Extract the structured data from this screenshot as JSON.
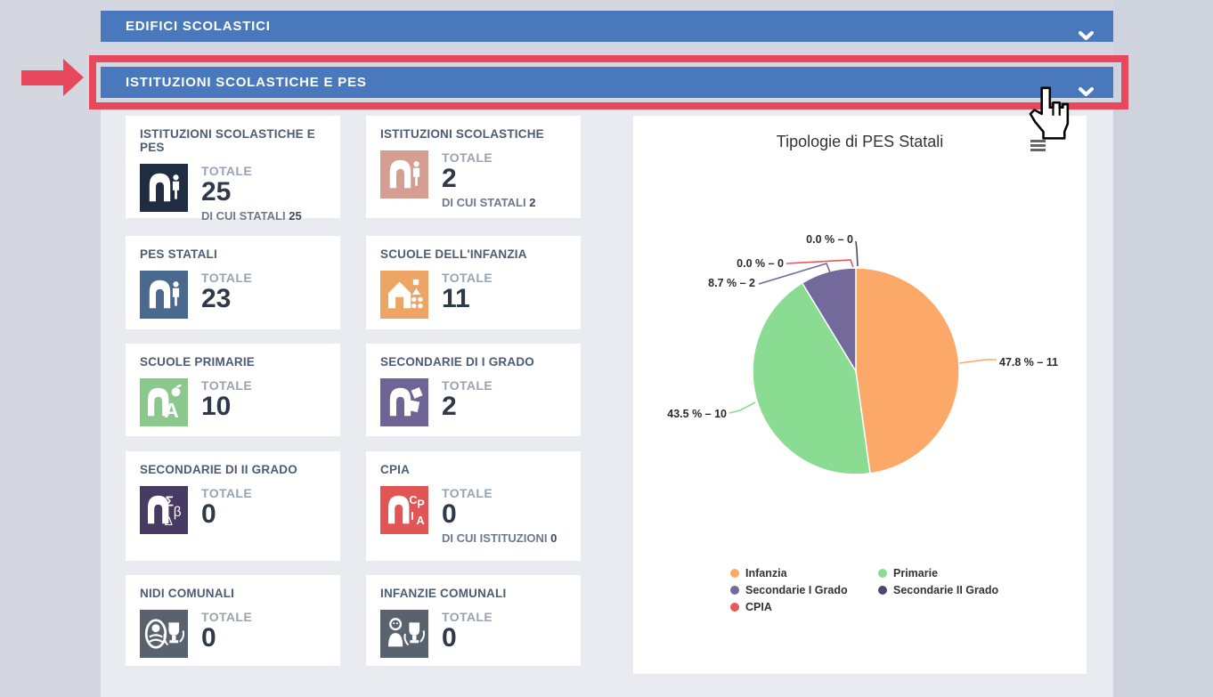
{
  "accordion": [
    {
      "label": "EDIFICI SCOLASTICI",
      "icon": "chevron-down-icon"
    },
    {
      "label": "ISTITUZIONI SCOLASTICHE E PES",
      "icon": "chevron-down-icon",
      "highlighted": true
    }
  ],
  "annotation": {
    "color": "#e8485c",
    "shape": "box-and-arrow"
  },
  "theme": {
    "bar_blue": "#4a78bd",
    "page_bg": "#d4d7e0",
    "content_bg": "#e9ebf1"
  },
  "cards": [
    {
      "title": "ISTITUZIONI SCOLASTICHE E PES",
      "icon": "school-arch-student-icon",
      "icon_color": "#1f2c41",
      "total_label": "TOTALE",
      "total": "25",
      "sub_label": "DI CUI STATALI",
      "sub_value": "25"
    },
    {
      "title": "ISTITUZIONI SCOLASTICHE",
      "icon": "school-arch-student-icon",
      "icon_color": "#d69d93",
      "total_label": "TOTALE",
      "total": "2",
      "sub_label": "DI CUI STATALI",
      "sub_value": "2"
    },
    {
      "title": "PES STATALI",
      "icon": "school-arch-student-icon",
      "icon_color": "#49698f",
      "total_label": "TOTALE",
      "total": "23"
    },
    {
      "title": "SCUOLE DELL'INFANZIA",
      "icon": "kindergarten-house-icon",
      "icon_color": "#eda565",
      "total_label": "TOTALE",
      "total": "11"
    },
    {
      "title": "SCUOLE PRIMARIE",
      "icon": "primary-school-icon",
      "icon_color": "#8bc88c",
      "total_label": "TOTALE",
      "total": "10"
    },
    {
      "title": "SECONDARIE DI I GRADO",
      "icon": "secondary-1-school-icon",
      "icon_color": "#6f6496",
      "total_label": "TOTALE",
      "total": "2"
    },
    {
      "title": "SECONDARIE DI II GRADO",
      "icon": "secondary-2-school-icon",
      "icon_color": "#483b63",
      "total_label": "TOTALE",
      "total": "0"
    },
    {
      "title": "CPIA",
      "icon": "cpia-school-icon",
      "icon_color": "#e25555",
      "total_label": "TOTALE",
      "total": "0",
      "sub_label": "DI CUI ISTITUZIONI",
      "sub_value": "0"
    },
    {
      "title": "NIDI COMUNALI",
      "icon": "nursery-baby-icon",
      "icon_color": "#59626f",
      "total_label": "TOTALE",
      "total": "0"
    },
    {
      "title": "INFANZIE COMUNALI",
      "icon": "municipal-kindergarten-icon",
      "icon_color": "#59626f",
      "total_label": "TOTALE",
      "total": "0"
    }
  ],
  "chart_data": {
    "type": "pie",
    "title": "Tipologie di PES Statali",
    "total": 23,
    "legend_position": "bottom",
    "menu_icon": "hamburger-menu-icon",
    "slices": [
      {
        "name": "Infanzia",
        "value": 11,
        "percent": 47.8,
        "label": "47.8 % – 11",
        "color": "#FCA868"
      },
      {
        "name": "Primarie",
        "value": 10,
        "percent": 43.5,
        "label": "43.5 % – 10",
        "color": "#8ADC92"
      },
      {
        "name": "Secondarie I Grado",
        "value": 2,
        "percent": 8.7,
        "label": "8.7 % – 2",
        "color": "#73699A"
      },
      {
        "name": "Secondarie II Grado",
        "value": 0,
        "percent": 0.0,
        "label": "0.0 % – 0",
        "color": "#4E4868"
      },
      {
        "name": "CPIA",
        "value": 0,
        "percent": 0.0,
        "label": "0.0 % – 0",
        "color": "#EB5757"
      }
    ]
  },
  "cursor": {
    "icon": "hand-pointer-cursor"
  }
}
